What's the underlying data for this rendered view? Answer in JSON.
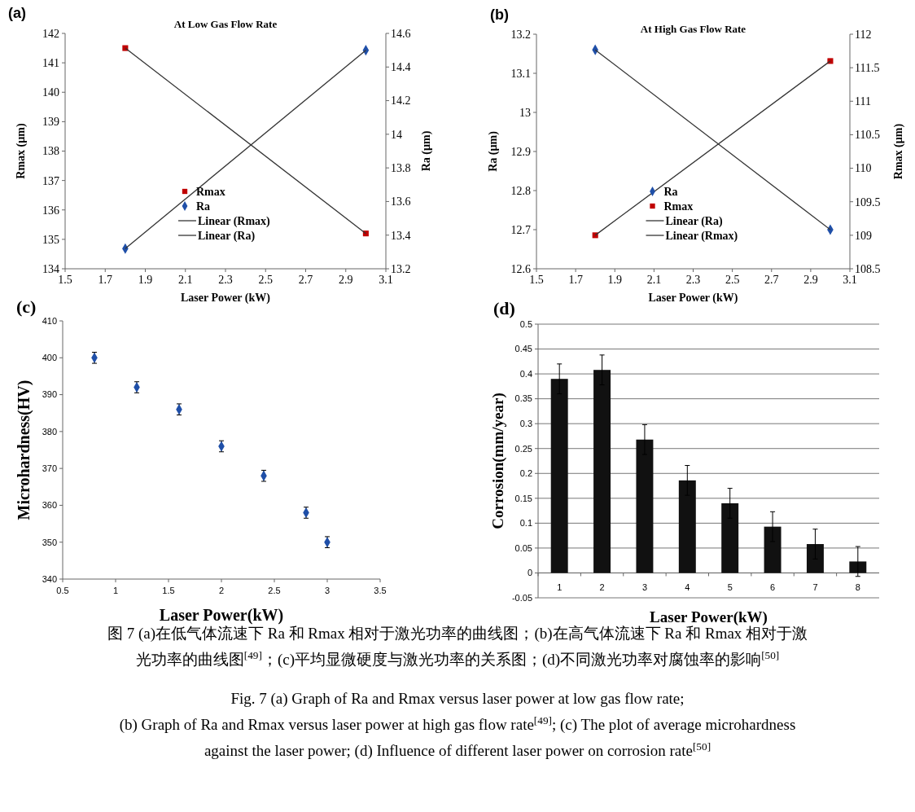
{
  "chart_data": [
    {
      "type": "scatter",
      "title": "At Low Gas Flow Rate",
      "xlabel": "Laser Power (kW)",
      "ylabel": "Rmax (µm)",
      "y2label": "Ra (µm)",
      "annotations": [
        "(a)"
      ],
      "xlim": [
        1.5,
        3.1
      ],
      "xticks": [
        1.5,
        1.7,
        1.9,
        2.1,
        2.3,
        2.5,
        2.7,
        2.9,
        3.1
      ],
      "ylim": [
        134,
        142
      ],
      "yticks": [
        134,
        135,
        136,
        137,
        138,
        139,
        140,
        141,
        142
      ],
      "y2lim": [
        13.2,
        14.6
      ],
      "y2ticks": [
        13.2,
        13.4,
        13.6,
        13.8,
        14,
        14.2,
        14.4,
        14.6
      ],
      "legend": "bottom",
      "grid": false,
      "series": [
        {
          "name": "Rmax",
          "color": "#c00000",
          "marker": "square",
          "x": [
            1.8,
            3.0
          ],
          "values": [
            141.5,
            135.2
          ]
        },
        {
          "name": "Ra",
          "color": "#1f4fa8",
          "marker": "diamond",
          "axis": "y2",
          "x": [
            1.8,
            3.0
          ],
          "values": [
            13.32,
            14.5
          ]
        },
        {
          "name": "Linear (Rmax)",
          "type": "line",
          "color": "#333333",
          "marker": "none",
          "x": [
            1.8,
            3.0
          ],
          "values": [
            141.5,
            135.2
          ]
        },
        {
          "name": "Linear (Ra)",
          "type": "line",
          "color": "#333333",
          "marker": "none",
          "axis": "y2",
          "x": [
            1.8,
            3.0
          ],
          "values": [
            13.32,
            14.5
          ]
        }
      ]
    },
    {
      "type": "scatter",
      "title": "At High Gas Flow Rate",
      "xlabel": "Laser Power (kW)",
      "ylabel": "Ra (µm)",
      "y2label": "Rmax (µm)",
      "annotations": [
        "(b)"
      ],
      "xlim": [
        1.5,
        3.1
      ],
      "xticks": [
        1.5,
        1.7,
        1.9,
        2.1,
        2.3,
        2.5,
        2.7,
        2.9,
        3.1
      ],
      "ylim": [
        12.6,
        13.2
      ],
      "yticks": [
        12.6,
        12.7,
        12.8,
        12.9,
        13,
        13.1,
        13.2
      ],
      "y2lim": [
        108.5,
        112
      ],
      "y2ticks": [
        108.5,
        109,
        109.5,
        110,
        110.5,
        111,
        111.5,
        112
      ],
      "legend": "bottom",
      "grid": false,
      "series": [
        {
          "name": "Ra",
          "color": "#1f4fa8",
          "marker": "diamond",
          "x": [
            1.8,
            3.0
          ],
          "values": [
            13.16,
            12.7
          ]
        },
        {
          "name": "Rmax",
          "color": "#c00000",
          "marker": "square",
          "axis": "y2",
          "x": [
            1.8,
            3.0
          ],
          "values": [
            109.0,
            111.6
          ]
        },
        {
          "name": "Linear (Ra)",
          "type": "line",
          "color": "#333333",
          "marker": "none",
          "x": [
            1.8,
            3.0
          ],
          "values": [
            13.16,
            12.7
          ]
        },
        {
          "name": "Linear (Rmax)",
          "type": "line",
          "color": "#333333",
          "marker": "none",
          "axis": "y2",
          "x": [
            1.8,
            3.0
          ],
          "values": [
            109.0,
            111.6
          ]
        }
      ]
    },
    {
      "type": "scatter",
      "xlabel": "Laser Power(kW)",
      "ylabel": "Microhardness(HV)",
      "annotations": [
        "(c)"
      ],
      "xlim": [
        0.5,
        3.5
      ],
      "xticks": [
        0.5,
        1,
        1.5,
        2,
        2.5,
        3,
        3.5
      ],
      "ylim": [
        340,
        410
      ],
      "yticks": [
        340,
        350,
        360,
        370,
        380,
        390,
        400,
        410
      ],
      "grid": false,
      "series": [
        {
          "color": "#1f4fa8",
          "marker": "diamond",
          "x": [
            0.8,
            1.2,
            1.6,
            2.0,
            2.4,
            2.8,
            3.0
          ],
          "values": [
            400,
            392,
            386,
            376,
            368,
            358,
            350
          ],
          "errors": [
            1.5,
            1.5,
            1.5,
            1.5,
            1.5,
            1.5,
            1.5
          ]
        }
      ]
    },
    {
      "type": "bar",
      "xlabel": "Laser Power(kW)",
      "ylabel": "Corrosion(mm/year)",
      "annotations": [
        "(d)"
      ],
      "categories": [
        "1",
        "2",
        "3",
        "4",
        "5",
        "6",
        "7",
        "8"
      ],
      "ylim": [
        -0.05,
        0.5
      ],
      "yticks": [
        -0.05,
        0,
        0.05,
        0.1,
        0.15,
        0.2,
        0.25,
        0.3,
        0.35,
        0.4,
        0.45,
        0.5
      ],
      "grid": "y",
      "series": [
        {
          "color": "#111111",
          "values": [
            0.39,
            0.408,
            0.268,
            0.186,
            0.14,
            0.093,
            0.058,
            0.023
          ],
          "errors": [
            0.03,
            0.03,
            0.03,
            0.03,
            0.03,
            0.03,
            0.03,
            0.03
          ]
        }
      ]
    },
    {
      "type": "other",
      "annotations": [
        "图 7 (a)在低气体流速下 Ra 和 Rmax 相对于激光功率的曲线图；(b)在高气体流速下 Ra 和 Rmax 相对于激",
        "光功率的曲线图$^{[49]}$；(c)平均显微硬度与激光功率的关系图；(d)不同激光功率对腐蚀率的影响$^{[50]}$",
        "Fig. 7 (a) Graph of Ra and Rmax versus laser power at low gas flow rate;",
        "(b) Graph of Ra and Rmax versus laser power at high gas flow rate$^{[49]}$; (c) The plot of average microhardness",
        "against the laser power; (d) Influence of different laser power on corrosion rate$^{[50]}$"
      ]
    }
  ]
}
